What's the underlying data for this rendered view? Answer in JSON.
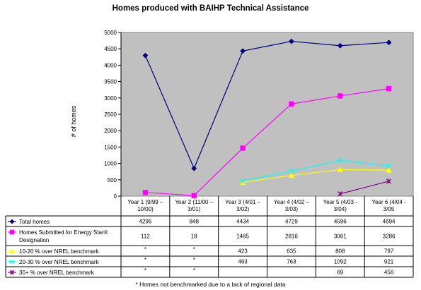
{
  "chart_data": {
    "type": "line",
    "title": "Homes produced with BAIHP Technical Assistance",
    "ylabel": "# of homes",
    "ylim": [
      0,
      5000
    ],
    "yticks": [
      0,
      500,
      1000,
      1500,
      2000,
      2500,
      3000,
      3500,
      4000,
      4500,
      5000
    ],
    "grid": false,
    "categories": [
      [
        "Year 1 (9/99 –",
        "10/00)"
      ],
      [
        "Year 2 (11/00 –",
        "3/01)"
      ],
      [
        "Year 3 (4/01 –",
        "3/02)"
      ],
      [
        "Year 4 (4/02 –",
        "3/03)"
      ],
      [
        "Year 5 (4/03 -",
        "3/04)"
      ],
      [
        "Year 6 (4/04 -",
        "3/05"
      ]
    ],
    "series": [
      {
        "name": [
          "Total homes"
        ],
        "color": "#000080",
        "marker": "diamond",
        "values": [
          4296,
          848,
          4434,
          4729,
          4596,
          4694
        ],
        "cells": [
          "4296",
          "848",
          "4434",
          "4729",
          "4596",
          "4694"
        ]
      },
      {
        "name": [
          "Homes Submitted for Energy Star®",
          "Designation"
        ],
        "color": "#ff00ff",
        "marker": "square",
        "values": [
          112,
          18,
          1465,
          2816,
          3061,
          3286
        ],
        "cells": [
          "112",
          "18",
          "1465",
          "2816",
          "3061",
          "3286"
        ]
      },
      {
        "name": [
          "10-20 % over NREL benchmark"
        ],
        "color": "#ffff00",
        "marker": "triangle",
        "values": [
          null,
          null,
          423,
          635,
          808,
          797
        ],
        "cells": [
          "*",
          "*",
          "423",
          "635",
          "808",
          "797"
        ]
      },
      {
        "name": [
          "20-30 % over NREL benchmark"
        ],
        "color": "#00ffff",
        "marker": "x",
        "values": [
          null,
          null,
          463,
          763,
          1092,
          921
        ],
        "cells": [
          "*",
          "*",
          "463",
          "763",
          "1092",
          "921"
        ]
      },
      {
        "name": [
          "30+ % over NREL benchmark"
        ],
        "color": "#800080",
        "marker": "star",
        "values": [
          null,
          null,
          null,
          null,
          69,
          456
        ],
        "cells": [
          "*",
          "*",
          "",
          "",
          "69",
          "456"
        ]
      }
    ],
    "footnote": "* Homes not benchmarked due to a lack of regional data"
  }
}
